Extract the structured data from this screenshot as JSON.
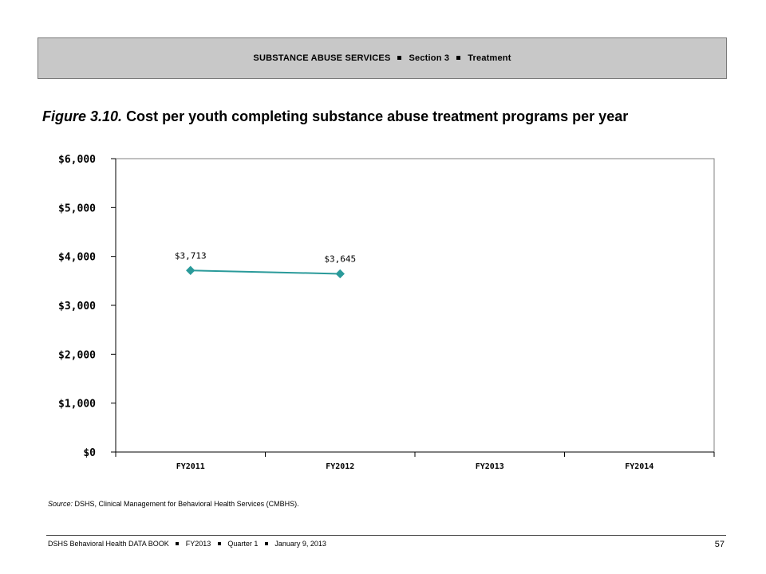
{
  "header": {
    "part1": "SUBSTANCE ABUSE SERVICES",
    "part2": "Section 3",
    "part3": "Treatment"
  },
  "figure": {
    "number": "Figure 3.10.",
    "title": "Cost per youth completing substance abuse treatment programs per year"
  },
  "chart_data": {
    "type": "line",
    "categories": [
      "FY2011",
      "FY2012",
      "FY2013",
      "FY2014"
    ],
    "series": [
      {
        "values": [
          3713,
          3645,
          null,
          null
        ],
        "labels": [
          "$3,713",
          "$3,645",
          null,
          null
        ],
        "color": "#2a9a9a"
      }
    ],
    "yticks": [
      "$0",
      "$1,000",
      "$2,000",
      "$3,000",
      "$4,000",
      "$5,000",
      "$6,000"
    ],
    "ylim": [
      0,
      6000
    ],
    "grid": false,
    "legend": "none"
  },
  "source": {
    "label": "Source:",
    "text": " DSHS, Clinical Management for Behavioral Health Services (CMBHS)."
  },
  "footer": {
    "book": "DSHS Behavioral Health DATA BOOK",
    "fy": "FY2013",
    "quarter": "Quarter 1",
    "date": "January  9, 2013",
    "page": "57"
  }
}
